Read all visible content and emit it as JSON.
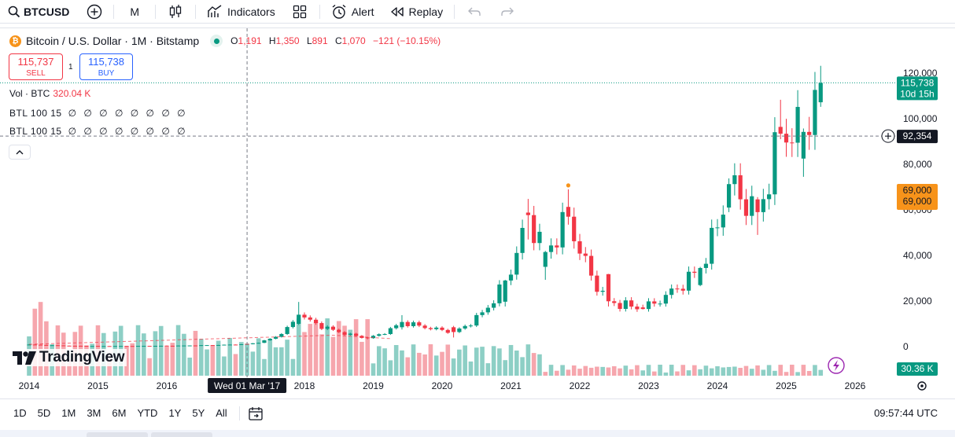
{
  "toolbar": {
    "symbol": "BTCUSD",
    "interval": "M",
    "indicators_label": "Indicators",
    "alert_label": "Alert",
    "replay_label": "Replay"
  },
  "legend": {
    "title": "Bitcoin / U.S. Dollar · 1M · Bitstamp",
    "ohlc": [
      {
        "k": "O",
        "v": "1,191"
      },
      {
        "k": "H",
        "v": "1,350"
      },
      {
        "k": "L",
        "v": "891"
      },
      {
        "k": "C",
        "v": "1,070"
      }
    ],
    "change": "−121 (−10.15%)",
    "vol_label": "Vol · BTC",
    "vol_value": "320.04 K",
    "btl1_label": "BTL 100 15",
    "btl1_values": "∅ ∅ ∅ ∅ ∅ ∅ ∅ ∅",
    "btl2_label": "BTL 100 15",
    "btl2_values": "∅ ∅ ∅ ∅ ∅ ∅ ∅ ∅"
  },
  "trade": {
    "sell_price": "115,737",
    "sell_label": "SELL",
    "spread": "1",
    "buy_price": "115,738",
    "buy_label": "BUY"
  },
  "price_axis": {
    "ticks": [
      "120,000",
      "100,000",
      "80,000",
      "60,000",
      "40,000",
      "20,000",
      "0"
    ],
    "tick_values": [
      120000,
      100000,
      80000,
      60000,
      40000,
      20000,
      0
    ],
    "last_price": "115,738",
    "countdown": "10d 15h",
    "crosshair_price": "92,354",
    "hl_label_1": "69,000",
    "hl_label_2": "69,000",
    "volume_label": "30.36 K"
  },
  "time_axis": {
    "years": [
      "2014",
      "2015",
      "2016",
      "2018",
      "2019",
      "2020",
      "2021",
      "2022",
      "2023",
      "2024",
      "2025",
      "2026"
    ],
    "crosshair_date": "Wed 01 Mar '17"
  },
  "logo": {
    "text": "TradingView"
  },
  "ranges": [
    "1D",
    "5D",
    "1M",
    "3M",
    "6M",
    "YTD",
    "1Y",
    "5Y",
    "All"
  ],
  "time_readout": "09:57:44 UTC",
  "colors": {
    "up": "#089981",
    "down": "#f23645",
    "vol_up": "#8dcfc5",
    "vol_down": "#f6a6ad",
    "accent": "#2962ff",
    "orange": "#f7931a"
  },
  "chart_data": {
    "type": "candlestick",
    "interval": "1M",
    "source": "Bitstamp",
    "ylim": [
      0,
      120000
    ],
    "keyframes_ohlc": [
      {
        "date": "2014-01",
        "o": 800,
        "h": 1100,
        "l": 700,
        "c": 900
      },
      {
        "date": "2015-01",
        "o": 320,
        "h": 330,
        "l": 180,
        "c": 220
      },
      {
        "date": "2016-01",
        "o": 430,
        "h": 460,
        "l": 360,
        "c": 370
      },
      {
        "date": "2017-03",
        "o": 1191,
        "h": 1350,
        "l": 891,
        "c": 1070
      },
      {
        "date": "2017-12",
        "o": 10000,
        "h": 19600,
        "l": 9500,
        "c": 14000
      },
      {
        "date": "2018-12",
        "o": 4000,
        "h": 4300,
        "l": 3200,
        "c": 3700
      },
      {
        "date": "2019-06",
        "o": 8500,
        "h": 13800,
        "l": 7500,
        "c": 10800
      },
      {
        "date": "2020-03",
        "o": 8500,
        "h": 9100,
        "l": 4000,
        "c": 6400
      },
      {
        "date": "2020-12",
        "o": 19700,
        "h": 29300,
        "l": 17600,
        "c": 29000
      },
      {
        "date": "2021-04",
        "o": 58800,
        "h": 64800,
        "l": 47000,
        "c": 57700
      },
      {
        "date": "2021-07",
        "o": 35000,
        "h": 42000,
        "l": 29300,
        "c": 41500
      },
      {
        "date": "2021-11",
        "o": 61300,
        "h": 69000,
        "l": 53500,
        "c": 57000
      },
      {
        "date": "2022-06",
        "o": 31800,
        "h": 31900,
        "l": 17600,
        "c": 19900
      },
      {
        "date": "2022-12",
        "o": 17200,
        "h": 18400,
        "l": 16300,
        "c": 16500
      },
      {
        "date": "2023-10",
        "o": 27000,
        "h": 35000,
        "l": 26500,
        "c": 34500
      },
      {
        "date": "2024-03",
        "o": 61000,
        "h": 73800,
        "l": 59000,
        "c": 71300
      },
      {
        "date": "2024-08",
        "o": 64600,
        "h": 65600,
        "l": 49000,
        "c": 59000
      },
      {
        "date": "2024-12",
        "o": 96400,
        "h": 108300,
        "l": 91000,
        "c": 93400
      },
      {
        "date": "2025-04",
        "o": 82500,
        "h": 95700,
        "l": 74500,
        "c": 94200
      },
      {
        "date": "2025-07",
        "o": 107200,
        "h": 123200,
        "l": 105200,
        "c": 115700
      }
    ]
  }
}
